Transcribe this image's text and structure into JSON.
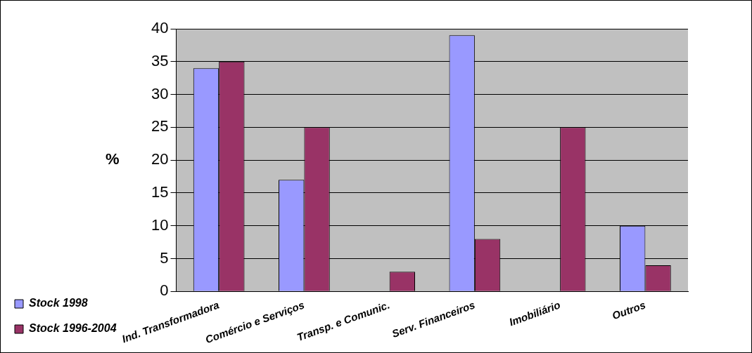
{
  "chart_data": {
    "type": "bar",
    "ylabel": "%",
    "categories": [
      "Ind. Transformadora",
      "Comércio e Serviços",
      "Transp. e Comunic.",
      "Serv. Financeiros",
      "Imobiliário",
      "Outros"
    ],
    "series": [
      {
        "name": "Stock 1998",
        "color": "#9999ff",
        "values": [
          34,
          17,
          null,
          39,
          null,
          10
        ]
      },
      {
        "name": "Stock 1996-2004",
        "color": "#993366",
        "values": [
          35,
          25,
          3,
          8,
          25,
          4
        ]
      }
    ],
    "ylim": [
      0,
      40
    ],
    "yticks": [
      0,
      5,
      10,
      15,
      20,
      25,
      30,
      35,
      40
    ],
    "grid": "y",
    "legend": "bottom left"
  }
}
